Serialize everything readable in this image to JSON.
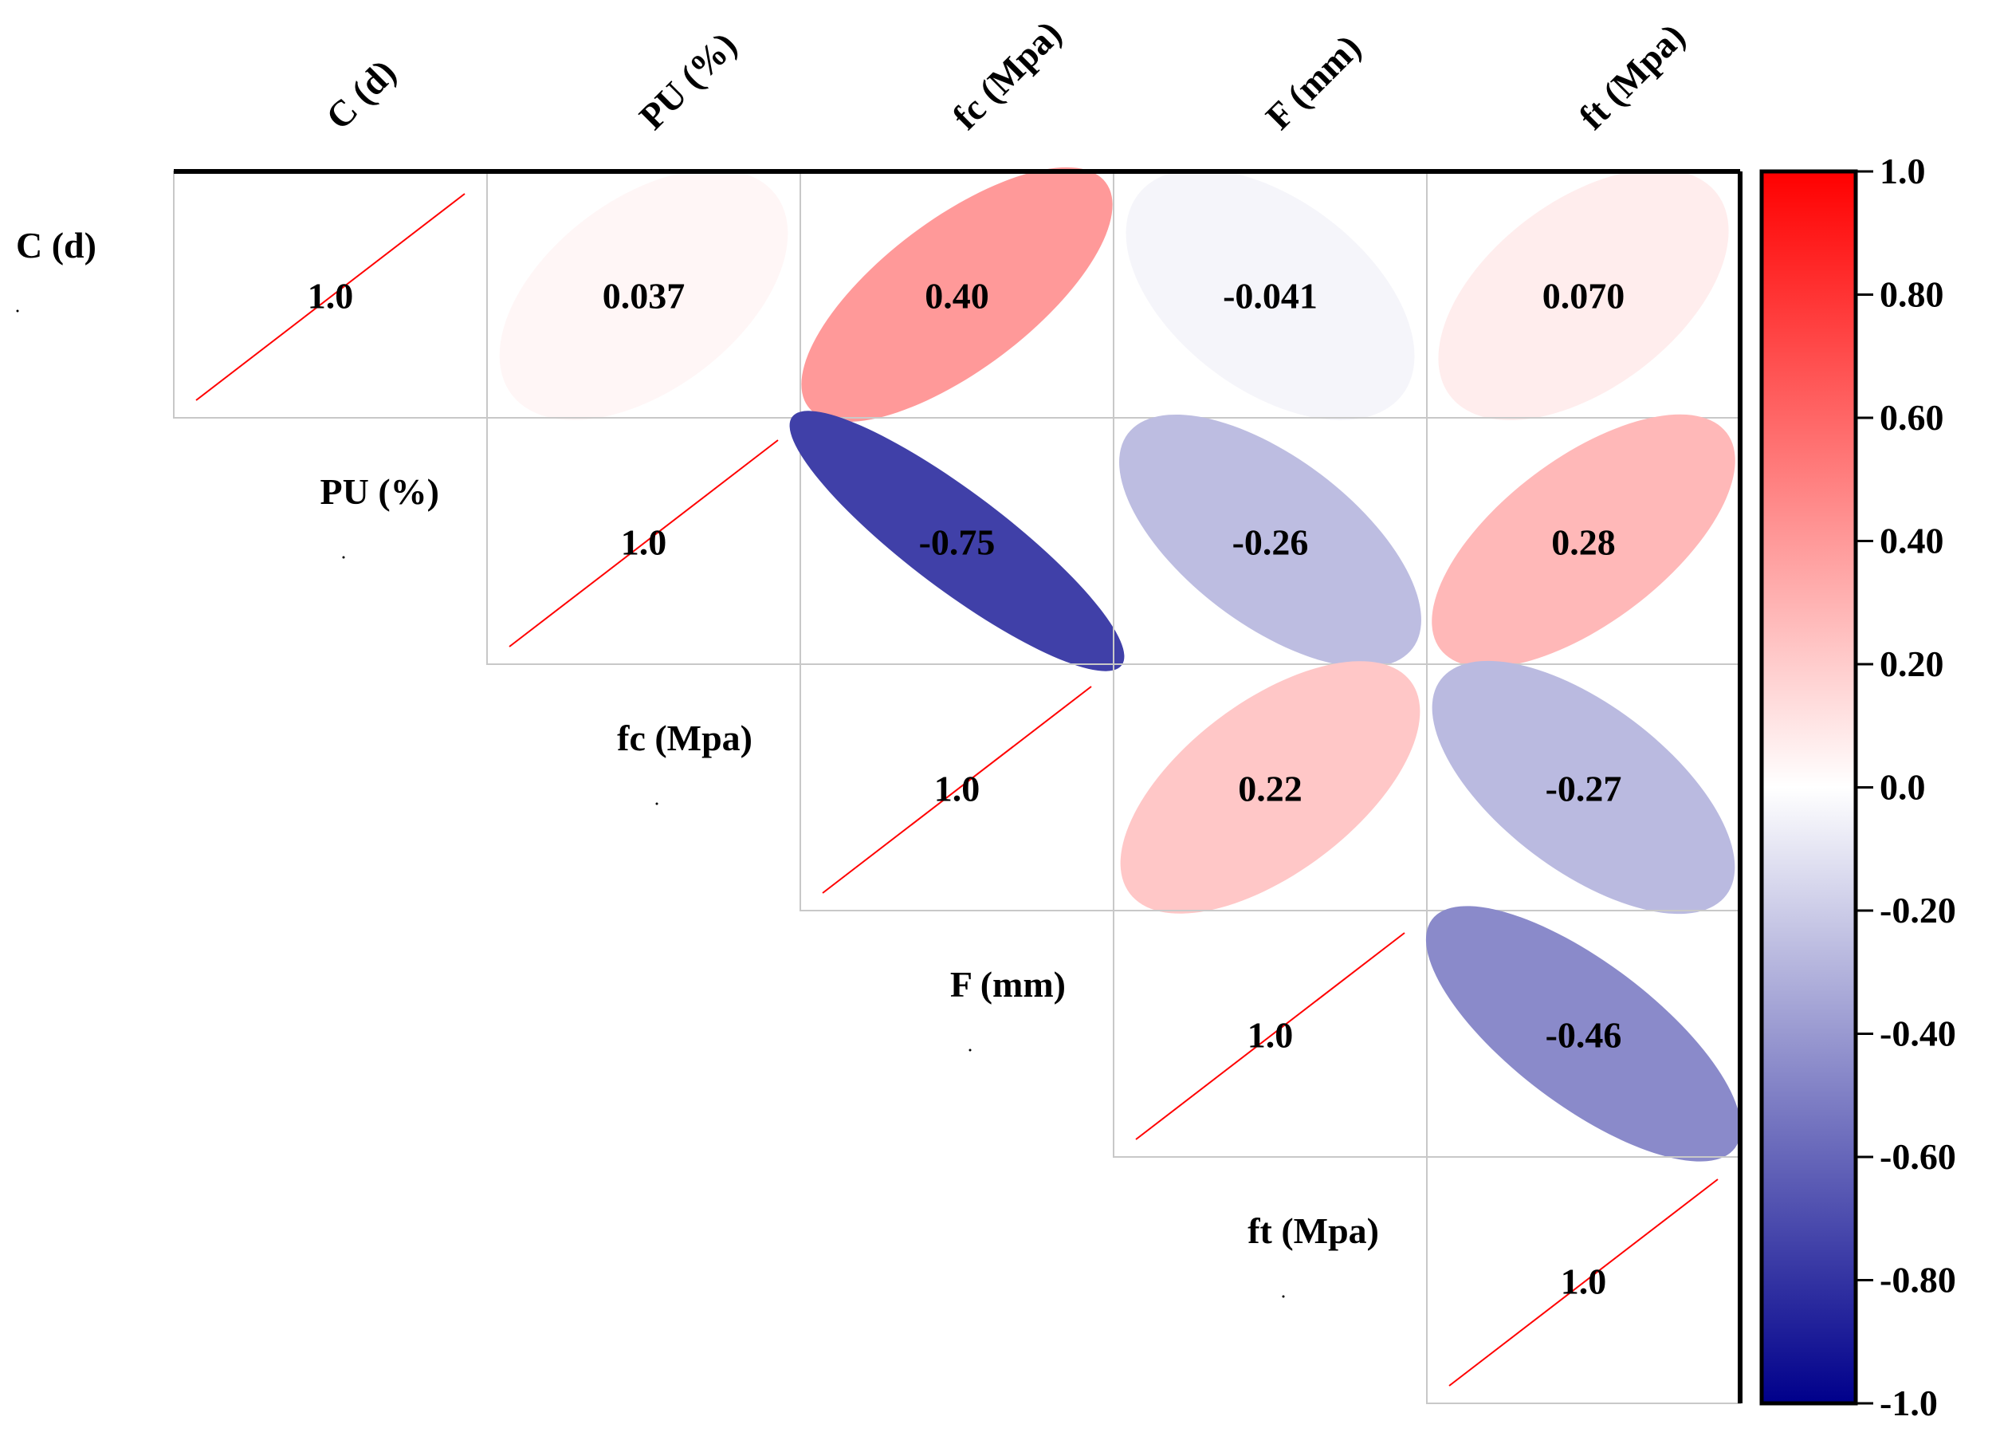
{
  "chart_data": {
    "type": "heatmap",
    "style": "upper-triangular ellipse correlation matrix",
    "variables": [
      "C (d)",
      "PU (%)",
      "fc (Mpa)",
      "F (mm)",
      "ft  (Mpa)"
    ],
    "cells": [
      {
        "row": 0,
        "col": 0,
        "value": 1.0,
        "label": "1.0"
      },
      {
        "row": 0,
        "col": 1,
        "value": 0.037,
        "label": "0.037"
      },
      {
        "row": 0,
        "col": 2,
        "value": 0.4,
        "label": "0.40"
      },
      {
        "row": 0,
        "col": 3,
        "value": -0.041,
        "label": "-0.041"
      },
      {
        "row": 0,
        "col": 4,
        "value": 0.07,
        "label": "0.070"
      },
      {
        "row": 1,
        "col": 1,
        "value": 1.0,
        "label": "1.0"
      },
      {
        "row": 1,
        "col": 2,
        "value": -0.75,
        "label": "-0.75"
      },
      {
        "row": 1,
        "col": 3,
        "value": -0.26,
        "label": "-0.26"
      },
      {
        "row": 1,
        "col": 4,
        "value": 0.28,
        "label": "0.28"
      },
      {
        "row": 2,
        "col": 2,
        "value": 1.0,
        "label": "1.0"
      },
      {
        "row": 2,
        "col": 3,
        "value": 0.22,
        "label": "0.22"
      },
      {
        "row": 2,
        "col": 4,
        "value": -0.27,
        "label": "-0.27"
      },
      {
        "row": 3,
        "col": 3,
        "value": 1.0,
        "label": "1.0"
      },
      {
        "row": 3,
        "col": 4,
        "value": -0.46,
        "label": "-0.46"
      },
      {
        "row": 4,
        "col": 4,
        "value": 1.0,
        "label": "1.0"
      }
    ],
    "colorbar": {
      "range": [
        -1.0,
        1.0
      ],
      "ticks": [
        "1.0",
        "0.80",
        "0.60",
        "0.40",
        "0.20",
        "0.0",
        "-0.20",
        "-0.40",
        "-0.60",
        "-0.80",
        "-1.0"
      ],
      "colors": {
        "negative": "#00008b",
        "zero": "#ffffff",
        "positive": "#ff0000"
      }
    },
    "diagonal_line_color": "#ff0000"
  }
}
